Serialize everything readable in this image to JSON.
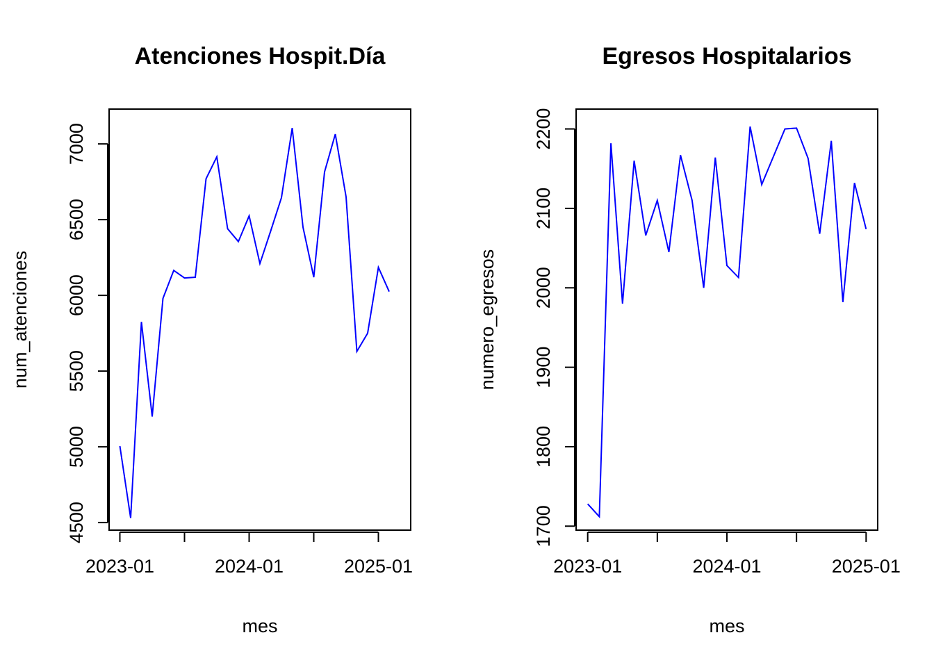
{
  "chart_data": [
    {
      "type": "line",
      "title": "Atenciones Hospit.Día",
      "xlabel": "mes",
      "ylabel": "num_atenciones",
      "x_tick_labels": [
        "2023-01",
        "2024-01",
        "2025-01"
      ],
      "y_ticks": [
        4500,
        5000,
        5500,
        6000,
        6500,
        7000
      ],
      "xlim": [
        -1,
        27
      ],
      "ylim": [
        4450,
        7230
      ],
      "grid": false,
      "color": "#0000FF",
      "x": [
        "2023-01",
        "2023-02",
        "2023-03",
        "2023-04",
        "2023-05",
        "2023-06",
        "2023-07",
        "2023-08",
        "2023-09",
        "2023-10",
        "2023-11",
        "2023-12",
        "2024-01",
        "2024-02",
        "2024-03",
        "2024-04",
        "2024-05",
        "2024-06",
        "2024-07",
        "2024-08",
        "2024-09",
        "2024-10",
        "2024-11",
        "2024-12",
        "2025-01",
        "2025-02"
      ],
      "values": [
        5005,
        4530,
        5825,
        5200,
        5980,
        6165,
        6115,
        6120,
        6770,
        6915,
        6440,
        6355,
        6525,
        6210,
        6425,
        6645,
        7105,
        6450,
        6120,
        6815,
        7065,
        6650,
        5630,
        5750,
        6185,
        6025
      ]
    },
    {
      "type": "line",
      "title": "Egresos Hospitalarios",
      "xlabel": "mes",
      "ylabel": "numero_egresos",
      "x_tick_labels": [
        "2023-01",
        "2024-01",
        "2025-01"
      ],
      "y_ticks": [
        1700,
        1800,
        1900,
        2000,
        2100,
        2200
      ],
      "xlim": [
        -1,
        25
      ],
      "ylim": [
        1695,
        2225
      ],
      "grid": false,
      "color": "#0000FF",
      "x": [
        "2023-01",
        "2023-02",
        "2023-03",
        "2023-04",
        "2023-05",
        "2023-06",
        "2023-07",
        "2023-08",
        "2023-09",
        "2023-10",
        "2023-11",
        "2023-12",
        "2024-01",
        "2024-02",
        "2024-03",
        "2024-04",
        "2024-05",
        "2024-06",
        "2024-07",
        "2024-08",
        "2024-09",
        "2024-10",
        "2024-11",
        "2024-12",
        "2025-01"
      ],
      "values": [
        1728,
        1712,
        2182,
        1980,
        2160,
        2066,
        2110,
        2045,
        2167,
        2110,
        2000,
        2164,
        2028,
        2013,
        2203,
        2130,
        2165,
        2200,
        2201,
        2163,
        2068,
        2185,
        1982,
        2132,
        2074
      ]
    }
  ]
}
